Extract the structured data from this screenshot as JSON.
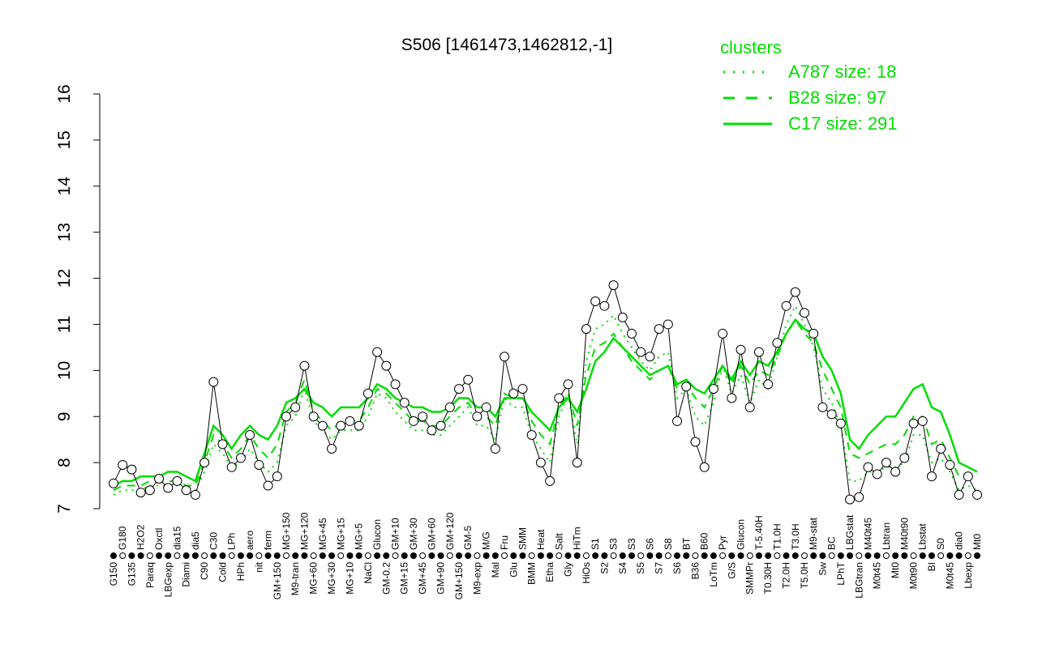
{
  "chart_data": {
    "type": "line",
    "title": "S506 [1461473,1462812,-1]",
    "xlabel": "",
    "ylabel": "",
    "ylim": [
      7,
      16
    ],
    "yticks": [
      7,
      8,
      9,
      10,
      11,
      12,
      13,
      14,
      15,
      16
    ],
    "grid": false,
    "legend": {
      "title": "clusters",
      "placement": "top-right",
      "entries": [
        {
          "label": "A787 size: 18",
          "style": "dotted"
        },
        {
          "label": "B28 size: 97",
          "style": "dashed"
        },
        {
          "label": "C17 size: 291",
          "style": "solid"
        }
      ]
    },
    "color": "#00dd00",
    "categories": [
      "G150",
      "G180",
      "G135",
      "H2O2",
      "Paraq",
      "Oxctl",
      "LBGexp",
      "dia15",
      "Diami",
      "dia5",
      "C90",
      "C30",
      "Cold",
      "LPh",
      "HPh",
      "aero",
      "nit",
      "ferm",
      "GM+150",
      "MG+150",
      "M9-tran",
      "MG+120",
      "MG+60",
      "MG+45",
      "MG+30",
      "MG+15",
      "MG+10",
      "MG+5",
      "NaCl",
      "Glucon",
      "GM-0.2",
      "GM+10",
      "GM+15",
      "GM+30",
      "GM+45",
      "GM+60",
      "GM+90",
      "GM+120",
      "GM+150",
      "GM-5",
      "M9-exp",
      "M/G",
      "Mal",
      "Fru",
      "Glu",
      "SMM",
      "BMM",
      "Heat",
      "Etha",
      "Salt",
      "Gly",
      "HiTm",
      "HiOs",
      "S1",
      "S2",
      "S3",
      "S4",
      "S3",
      "S5",
      "S6",
      "S7",
      "S8",
      "S6",
      "BT",
      "B36",
      "B60",
      "LoTm",
      "Pyr",
      "G/S",
      "Glucon",
      "SMMPr",
      "T-5.40H",
      "T0.30H",
      "T1.0H",
      "T2.0H",
      "T3.0H",
      "T5.0H",
      "M9-stat",
      "Sw",
      "BC",
      "LPhT",
      "LBGstat",
      "LBGtran",
      "M40t45",
      "M0t45",
      "Lbtran",
      "Mt0",
      "M40t90",
      "M0t90",
      "Lbstat",
      "BI",
      "S0",
      "M0t45",
      "dia0",
      "Lbexp",
      "Mt0"
    ],
    "values": [
      7.55,
      7.95,
      7.85,
      7.35,
      7.4,
      7.65,
      7.45,
      7.6,
      7.4,
      7.3,
      8.0,
      9.75,
      8.4,
      7.9,
      8.1,
      8.6,
      7.95,
      7.5,
      7.7,
      9.0,
      9.2,
      10.1,
      9.0,
      8.8,
      8.3,
      8.8,
      8.9,
      8.8,
      9.5,
      10.4,
      10.1,
      9.7,
      9.3,
      8.9,
      9.0,
      8.7,
      8.8,
      9.2,
      9.6,
      9.8,
      9.0,
      9.2,
      8.3,
      10.3,
      9.5,
      9.6,
      8.6,
      8.0,
      7.6,
      9.4,
      9.7,
      8.0,
      10.9,
      11.5,
      11.4,
      11.85,
      11.15,
      10.8,
      10.4,
      10.3,
      10.9,
      11.0,
      8.9,
      9.65,
      8.45,
      7.9,
      9.6,
      10.8,
      9.4,
      10.45,
      9.2,
      10.4,
      9.7,
      10.6,
      11.4,
      11.7,
      11.25,
      10.8,
      9.2,
      9.05,
      8.85,
      7.2,
      7.25,
      7.9,
      7.75,
      8.0,
      7.8,
      8.1,
      8.85,
      8.9,
      7.7,
      8.3,
      7.95,
      7.3,
      7.7,
      7.3
    ],
    "series": [
      {
        "name": "A787",
        "values": [
          7.3,
          7.4,
          7.4,
          7.4,
          7.5,
          7.5,
          7.5,
          7.5,
          7.4,
          7.4,
          7.8,
          8.4,
          8.2,
          7.9,
          8.0,
          8.3,
          8.0,
          7.8,
          8.0,
          8.8,
          9.0,
          9.6,
          8.9,
          8.7,
          8.5,
          8.7,
          8.7,
          8.7,
          9.0,
          9.5,
          9.4,
          9.1,
          8.9,
          8.7,
          8.7,
          8.6,
          8.6,
          8.8,
          9.0,
          9.2,
          8.8,
          8.8,
          8.5,
          9.4,
          9.2,
          9.2,
          8.6,
          8.3,
          8.0,
          9.0,
          9.5,
          8.4,
          10.2,
          10.9,
          11.0,
          11.2,
          10.8,
          10.5,
          10.2,
          10.0,
          10.3,
          10.4,
          9.4,
          9.6,
          9.0,
          8.8,
          9.3,
          10.1,
          9.5,
          9.9,
          9.3,
          9.8,
          9.6,
          10.3,
          11.0,
          11.4,
          11.0,
          10.5,
          9.6,
          9.3,
          8.8,
          7.6,
          7.6,
          7.8,
          7.8,
          7.9,
          7.9,
          8.0,
          8.6,
          8.6,
          8.0,
          8.1,
          7.8,
          7.4,
          7.5,
          7.4
        ]
      },
      {
        "name": "B28",
        "values": [
          7.4,
          7.5,
          7.5,
          7.5,
          7.6,
          7.6,
          7.6,
          7.6,
          7.5,
          7.5,
          8.0,
          8.6,
          8.4,
          8.1,
          8.3,
          8.6,
          8.3,
          8.1,
          8.4,
          9.1,
          9.3,
          9.8,
          9.1,
          8.9,
          8.7,
          8.9,
          8.9,
          8.9,
          9.2,
          9.6,
          9.5,
          9.3,
          9.1,
          8.9,
          8.9,
          8.8,
          8.8,
          9.0,
          9.2,
          9.3,
          9.0,
          9.0,
          8.8,
          9.5,
          9.4,
          9.4,
          8.9,
          8.6,
          8.4,
          9.2,
          9.5,
          8.8,
          9.9,
          10.5,
          10.6,
          10.8,
          10.5,
          10.2,
          10.0,
          9.8,
          10.0,
          10.1,
          9.6,
          9.7,
          9.4,
          9.2,
          9.6,
          10.1,
          9.7,
          10.1,
          9.7,
          10.0,
          9.9,
          10.3,
          10.8,
          11.1,
          10.8,
          10.6,
          10.0,
          9.6,
          9.2,
          8.2,
          8.1,
          8.2,
          8.3,
          8.4,
          8.4,
          8.6,
          9.0,
          9.0,
          8.4,
          8.5,
          8.1,
          7.7,
          7.7,
          7.6
        ]
      },
      {
        "name": "C17",
        "values": [
          7.5,
          7.6,
          7.6,
          7.7,
          7.7,
          7.7,
          7.8,
          7.8,
          7.7,
          7.6,
          8.2,
          8.8,
          8.6,
          8.3,
          8.6,
          8.8,
          8.6,
          8.5,
          8.8,
          9.3,
          9.4,
          9.6,
          9.3,
          9.2,
          9.0,
          9.2,
          9.2,
          9.2,
          9.4,
          9.7,
          9.6,
          9.4,
          9.3,
          9.2,
          9.2,
          9.1,
          9.1,
          9.2,
          9.4,
          9.4,
          9.2,
          9.2,
          9.0,
          9.4,
          9.4,
          9.4,
          9.1,
          8.9,
          8.7,
          9.2,
          9.4,
          9.1,
          9.6,
          10.2,
          10.4,
          10.7,
          10.5,
          10.3,
          10.1,
          9.9,
          10.0,
          10.1,
          9.7,
          9.8,
          9.6,
          9.5,
          9.8,
          10.1,
          9.8,
          10.2,
          9.9,
          10.2,
          10.1,
          10.4,
          10.8,
          11.1,
          10.9,
          10.8,
          10.3,
          10.0,
          9.5,
          8.5,
          8.3,
          8.6,
          8.8,
          9.0,
          9.0,
          9.3,
          9.6,
          9.7,
          9.2,
          9.1,
          8.6,
          8.0,
          7.9,
          7.8
        ]
      }
    ]
  }
}
